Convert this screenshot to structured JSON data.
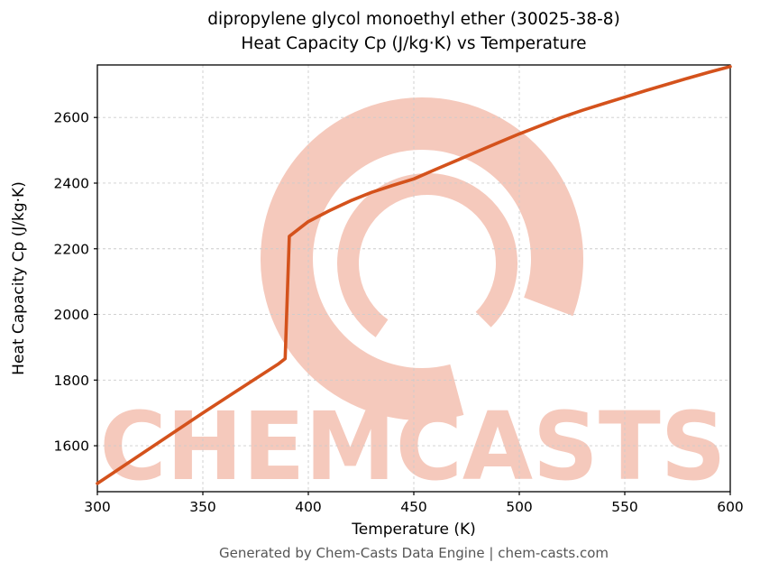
{
  "title": {
    "line1": "dipropylene glycol monoethyl ether (30025-38-8)",
    "line2": "Heat Capacity Cp (J/kg·K) vs Temperature"
  },
  "footer": "Generated by Chem-Casts Data Engine | chem-casts.com",
  "watermark": {
    "text": "CHEMCASTS",
    "color": "#f5c9bc"
  },
  "chart_data": {
    "type": "line",
    "title": "dipropylene glycol monoethyl ether (30025-38-8) — Heat Capacity Cp (J/kg·K) vs Temperature",
    "xlabel": "Temperature (K)",
    "ylabel": "Heat Capacity Cp (J/kg·K)",
    "xlim": [
      300,
      600
    ],
    "ylim": [
      1460,
      2760
    ],
    "xticks": [
      300,
      350,
      400,
      450,
      500,
      550,
      600
    ],
    "yticks": [
      1600,
      1800,
      2000,
      2200,
      2400,
      2600
    ],
    "grid": true,
    "legend": false,
    "line_color": "#d4521c",
    "series": [
      {
        "name": "Heat Capacity Cp",
        "x": [
          300,
          350,
          386,
          389,
          391,
          400,
          410,
          420,
          430,
          440,
          450,
          460,
          470,
          480,
          490,
          500,
          510,
          520,
          530,
          540,
          550,
          560,
          570,
          580,
          590,
          600
        ],
        "y": [
          1485,
          1700,
          1850,
          1865,
          2238,
          2283,
          2316,
          2346,
          2372,
          2393,
          2413,
          2441,
          2468,
          2496,
          2523,
          2550,
          2575,
          2600,
          2622,
          2642,
          2662,
          2682,
          2701,
          2720,
          2738,
          2755
        ]
      }
    ]
  }
}
